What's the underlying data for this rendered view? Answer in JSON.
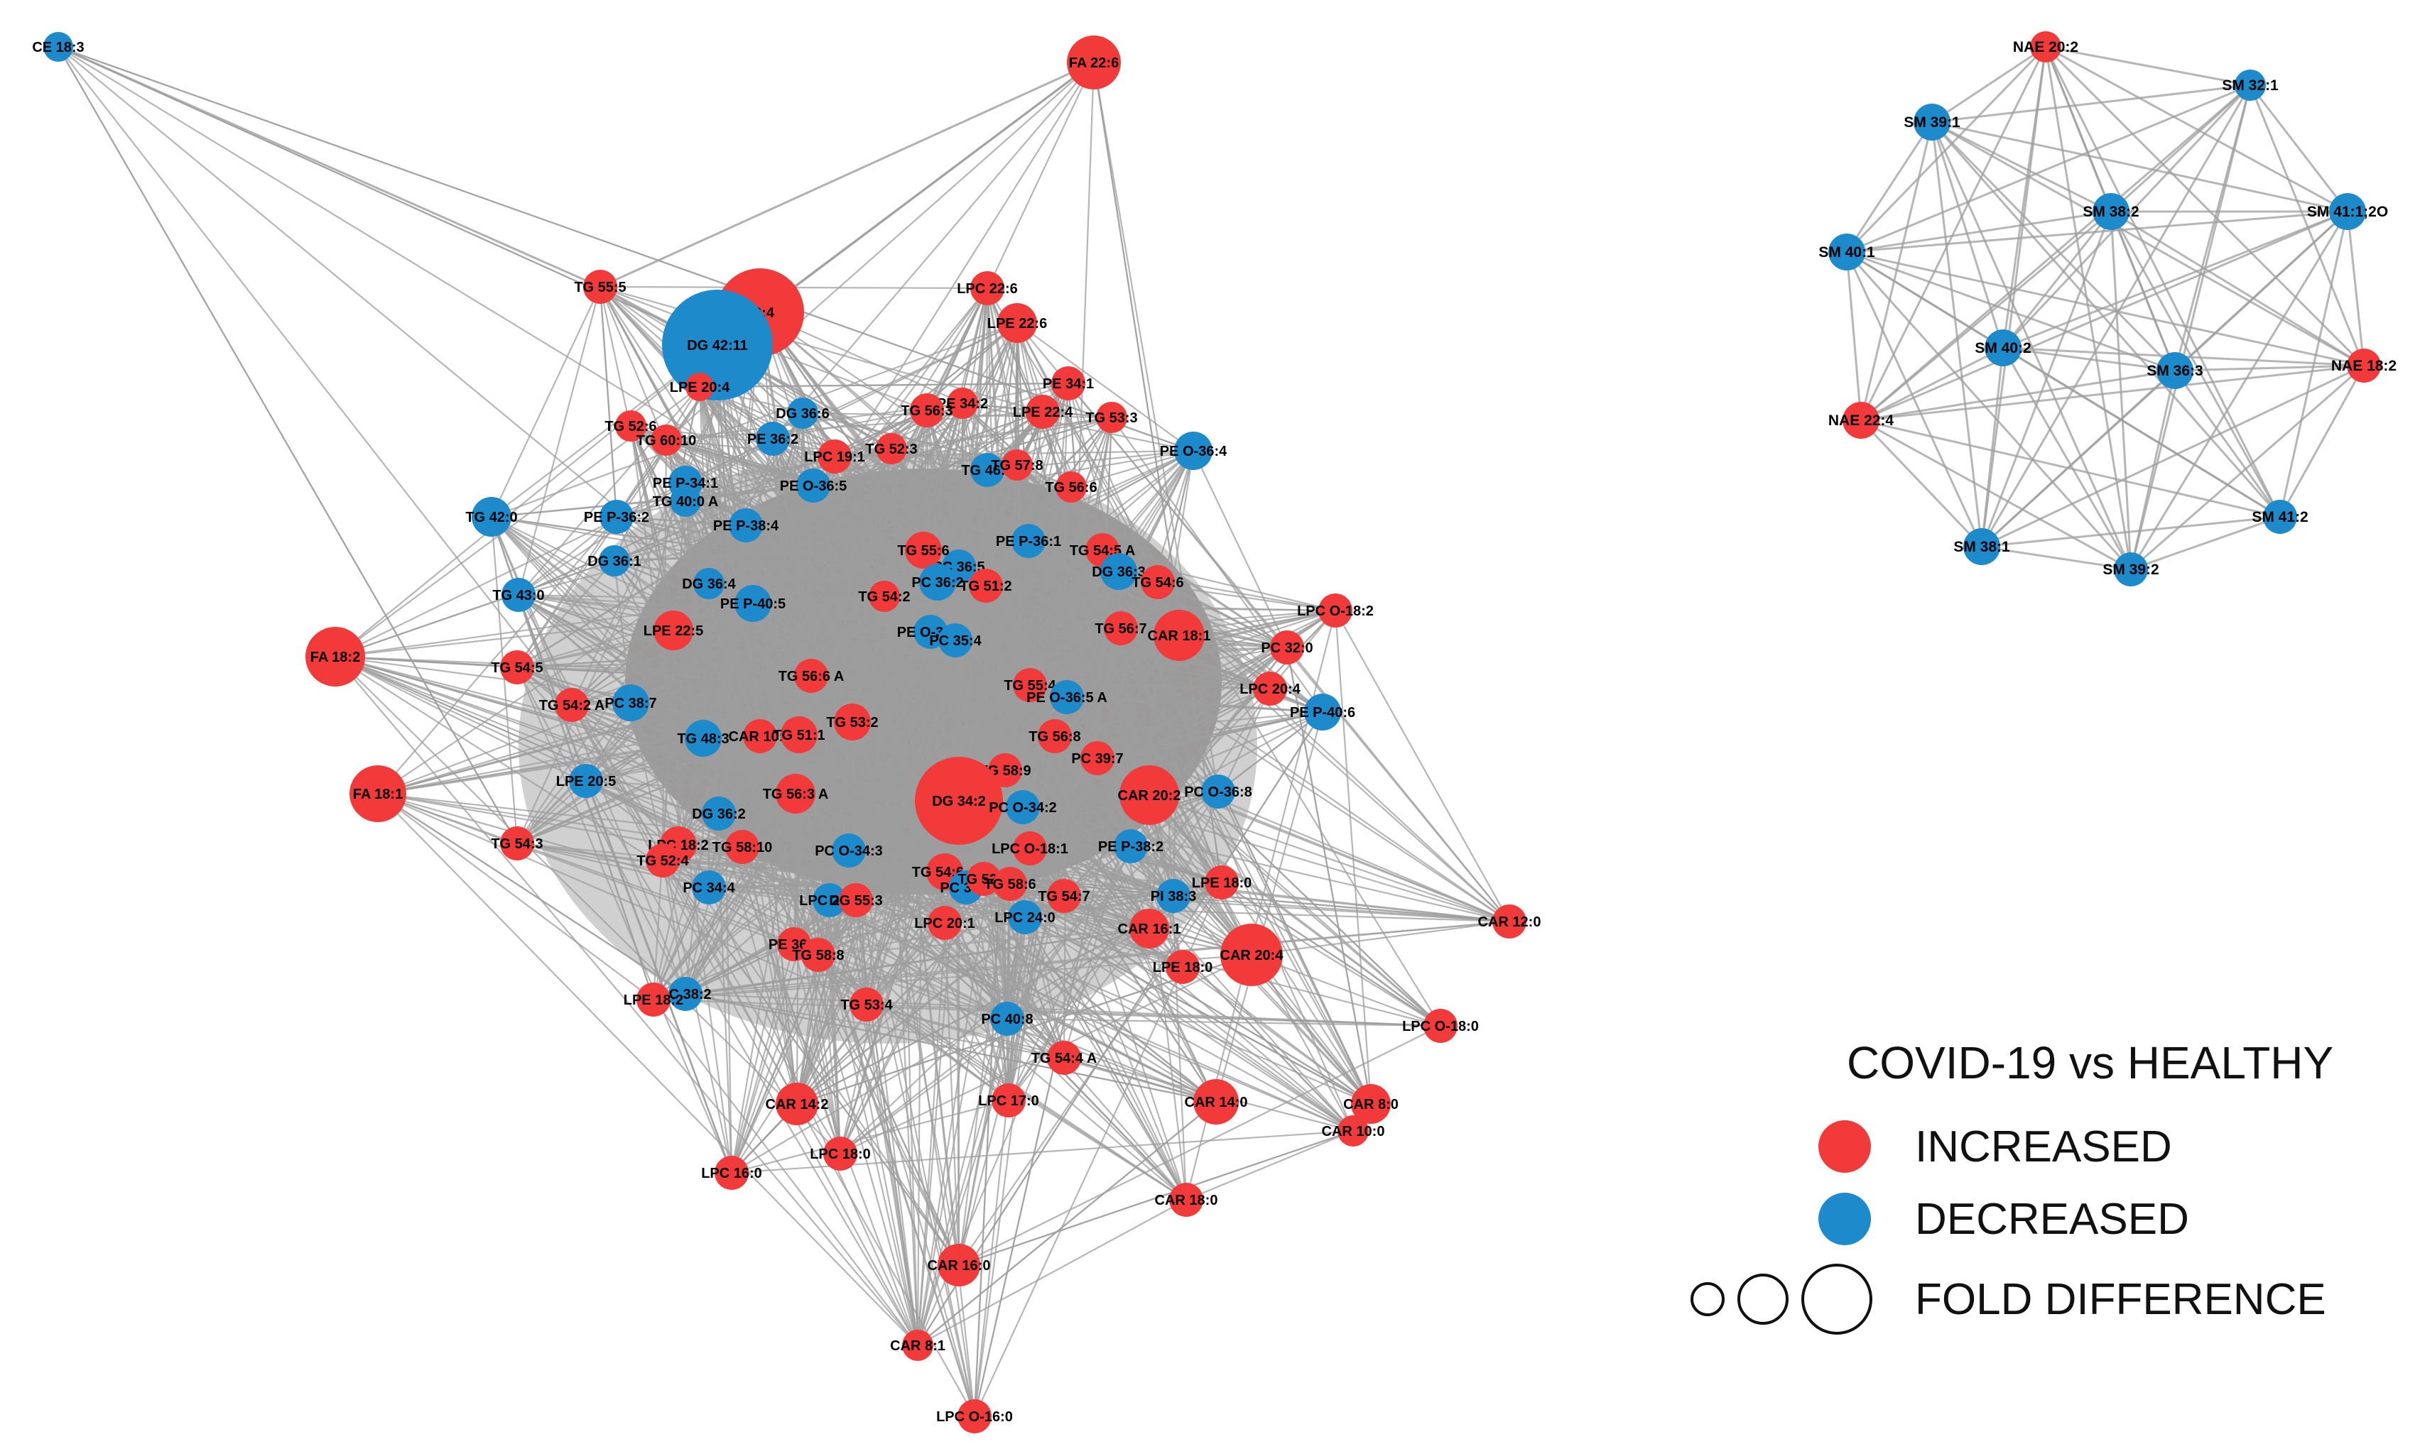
{
  "colors": {
    "increased": "#F23A3A",
    "decreased": "#1C8ACB",
    "edge": "#9E9E9E"
  },
  "legend": {
    "title": "COVID-19 vs HEALTHY",
    "increased_label": "INCREASED",
    "decreased_label": "DECREASED",
    "size_label": "FOLD DIFFERENCE"
  },
  "networks": [
    {
      "id": "main",
      "nodes": [
        {
          "label": "CE 18:3",
          "status": "decreased"
        },
        {
          "label": "FA 22:6",
          "status": "increased"
        },
        {
          "label": "TG 55:5",
          "status": "increased"
        },
        {
          "label": "20:4",
          "status": "increased"
        },
        {
          "label": "DG 42:11",
          "status": "decreased"
        },
        {
          "label": "LPE 20:4",
          "status": "increased"
        },
        {
          "label": "LPC 22:6",
          "status": "increased"
        },
        {
          "label": "LPE 22:6",
          "status": "increased"
        },
        {
          "label": "PE 34:1",
          "status": "increased"
        },
        {
          "label": "LPE 22:4",
          "status": "increased"
        },
        {
          "label": "TG 53:3",
          "status": "increased"
        },
        {
          "label": "PE O-36:4",
          "status": "decreased"
        },
        {
          "label": "TG 52:6",
          "status": "increased"
        },
        {
          "label": "TG 60:10",
          "status": "increased"
        },
        {
          "label": "DG 36:6",
          "status": "decreased"
        },
        {
          "label": "PE 36:2",
          "status": "decreased"
        },
        {
          "label": "PE 34:2",
          "status": "increased"
        },
        {
          "label": "TG 56:3",
          "status": "increased"
        },
        {
          "label": "TG 52:3",
          "status": "increased"
        },
        {
          "label": "LPC 19:1",
          "status": "increased"
        },
        {
          "label": "TG 46:1",
          "status": "decreased"
        },
        {
          "label": "TG 57:8",
          "status": "increased"
        },
        {
          "label": "TG 56:6",
          "status": "increased"
        },
        {
          "label": "PE P-34:1",
          "status": "decreased"
        },
        {
          "label": "TG 40:0 A",
          "status": "decreased"
        },
        {
          "label": "PE O-36:5",
          "status": "decreased"
        },
        {
          "label": "TG 42:0",
          "status": "decreased"
        },
        {
          "label": "PE P-36:2",
          "status": "decreased"
        },
        {
          "label": "PE P-38:4",
          "status": "decreased"
        },
        {
          "label": "DG 36:1",
          "status": "decreased"
        },
        {
          "label": "PC 36:5",
          "status": "decreased"
        },
        {
          "label": "TG 55:6",
          "status": "increased"
        },
        {
          "label": "PE P-36:1",
          "status": "decreased"
        },
        {
          "label": "TG 54:5 A",
          "status": "increased"
        },
        {
          "label": "TG 43:0",
          "status": "decreased"
        },
        {
          "label": "DG 36:4",
          "status": "decreased"
        },
        {
          "label": "PE P-40:5",
          "status": "decreased"
        },
        {
          "label": "TG 54:2",
          "status": "increased"
        },
        {
          "label": "PC 36:2",
          "status": "decreased"
        },
        {
          "label": "TG 51:2",
          "status": "increased"
        },
        {
          "label": "DG 36:3",
          "status": "decreased"
        },
        {
          "label": "TG 54:6",
          "status": "increased"
        },
        {
          "label": "LPC O-18:2",
          "status": "increased"
        },
        {
          "label": "FA 18:2",
          "status": "increased"
        },
        {
          "label": "LPE 22:5",
          "status": "increased"
        },
        {
          "label": "PE O-38:6",
          "status": "decreased"
        },
        {
          "label": "PC 35:4",
          "status": "decreased"
        },
        {
          "label": "TG 56:7",
          "status": "increased"
        },
        {
          "label": "CAR 18:1",
          "status": "increased"
        },
        {
          "label": "PC 32:0",
          "status": "increased"
        },
        {
          "label": "TG 54:5",
          "status": "increased"
        },
        {
          "label": "TG 56:6 A",
          "status": "increased"
        },
        {
          "label": "TG 55:4",
          "status": "increased"
        },
        {
          "label": "PE O-36:5 A",
          "status": "decreased"
        },
        {
          "label": "LPC 20:4",
          "status": "increased"
        },
        {
          "label": "PE P-40:6",
          "status": "decreased"
        },
        {
          "label": "TG 54:2 A",
          "status": "increased"
        },
        {
          "label": "PC 38:7",
          "status": "decreased"
        },
        {
          "label": "TG 53:2",
          "status": "increased"
        },
        {
          "label": "TG 48:3",
          "status": "decreased"
        },
        {
          "label": "CAR 10:1",
          "status": "increased"
        },
        {
          "label": "TG 51:1",
          "status": "increased"
        },
        {
          "label": "TG 56:8",
          "status": "increased"
        },
        {
          "label": "PC 39:7",
          "status": "increased"
        },
        {
          "label": "FA 18:1",
          "status": "increased"
        },
        {
          "label": "LPE 20:5",
          "status": "decreased"
        },
        {
          "label": "TG 58:9",
          "status": "increased"
        },
        {
          "label": "DG 34:2",
          "status": "increased"
        },
        {
          "label": "CAR 20:2",
          "status": "increased"
        },
        {
          "label": "PC O-36:8",
          "status": "decreased"
        },
        {
          "label": "DG 36:2",
          "status": "decreased"
        },
        {
          "label": "TG 56:3 A",
          "status": "increased"
        },
        {
          "label": "PC O-34:2",
          "status": "decreased"
        },
        {
          "label": "TG 54:3",
          "status": "increased"
        },
        {
          "label": "LPC 18:2",
          "status": "increased"
        },
        {
          "label": "TG 58:10",
          "status": "increased"
        },
        {
          "label": "PC O-34:3",
          "status": "decreased"
        },
        {
          "label": "LPC O-18:1",
          "status": "increased"
        },
        {
          "label": "PE P-38:2",
          "status": "decreased"
        },
        {
          "label": "TG 52:4",
          "status": "increased"
        },
        {
          "label": "TG 54:6 A",
          "status": "increased"
        },
        {
          "label": "PC 37:2",
          "status": "decreased"
        },
        {
          "label": "TG 52:2",
          "status": "increased"
        },
        {
          "label": "TG 58:6",
          "status": "increased"
        },
        {
          "label": "LPE 18:0",
          "status": "increased"
        },
        {
          "label": "PC 34:4",
          "status": "decreased"
        },
        {
          "label": "LPC 20:5",
          "status": "decreased"
        },
        {
          "label": "DG 55:3",
          "status": "increased"
        },
        {
          "label": "TG 54:7",
          "status": "increased"
        },
        {
          "label": "PI 38:3",
          "status": "decreased"
        },
        {
          "label": "CAR 12:0",
          "status": "increased"
        },
        {
          "label": "LPC 20:1",
          "status": "increased"
        },
        {
          "label": "LPC 24:0",
          "status": "decreased"
        },
        {
          "label": "CAR 16:1",
          "status": "increased"
        },
        {
          "label": "PE 36:1",
          "status": "increased"
        },
        {
          "label": "TG 58:8",
          "status": "increased"
        },
        {
          "label": "CAR 20:4",
          "status": "increased"
        },
        {
          "label": "LPE 18:0",
          "status": "increased"
        },
        {
          "label": "PC 38:2",
          "status": "decreased"
        },
        {
          "label": "LPE 18:2",
          "status": "increased"
        },
        {
          "label": "TG 53:4",
          "status": "increased"
        },
        {
          "label": "PC 40:8",
          "status": "decreased"
        },
        {
          "label": "LPC O-18:0",
          "status": "increased"
        },
        {
          "label": "TG 54:4 A",
          "status": "increased"
        },
        {
          "label": "CAR 14:2",
          "status": "increased"
        },
        {
          "label": "LPC 17:0",
          "status": "increased"
        },
        {
          "label": "CAR 14:0",
          "status": "increased"
        },
        {
          "label": "CAR 8:0",
          "status": "increased"
        },
        {
          "label": "CAR 10:0",
          "status": "increased"
        },
        {
          "label": "LPC 18:0",
          "status": "increased"
        },
        {
          "label": "LPC 16:0",
          "status": "increased"
        },
        {
          "label": "CAR 18:0",
          "status": "increased"
        },
        {
          "label": "CAR 16:0",
          "status": "increased"
        },
        {
          "label": "CAR 8:1",
          "status": "increased"
        },
        {
          "label": "LPC O-16:0",
          "status": "increased"
        }
      ]
    },
    {
      "id": "sphingomyelin",
      "nodes": [
        {
          "label": "NAE 20:2",
          "status": "increased"
        },
        {
          "label": "SM 32:1",
          "status": "decreased"
        },
        {
          "label": "SM 39:1",
          "status": "decreased"
        },
        {
          "label": "SM 38:2",
          "status": "decreased"
        },
        {
          "label": "SM 41:1;2O",
          "status": "decreased"
        },
        {
          "label": "SM 40:1",
          "status": "decreased"
        },
        {
          "label": "SM 40:2",
          "status": "decreased"
        },
        {
          "label": "SM 36:3",
          "status": "decreased"
        },
        {
          "label": "NAE 18:2",
          "status": "increased"
        },
        {
          "label": "NAE 22:4",
          "status": "increased"
        },
        {
          "label": "SM 41:2",
          "status": "decreased"
        },
        {
          "label": "SM 38:1",
          "status": "decreased"
        },
        {
          "label": "SM 39:2",
          "status": "decreased"
        }
      ]
    }
  ]
}
